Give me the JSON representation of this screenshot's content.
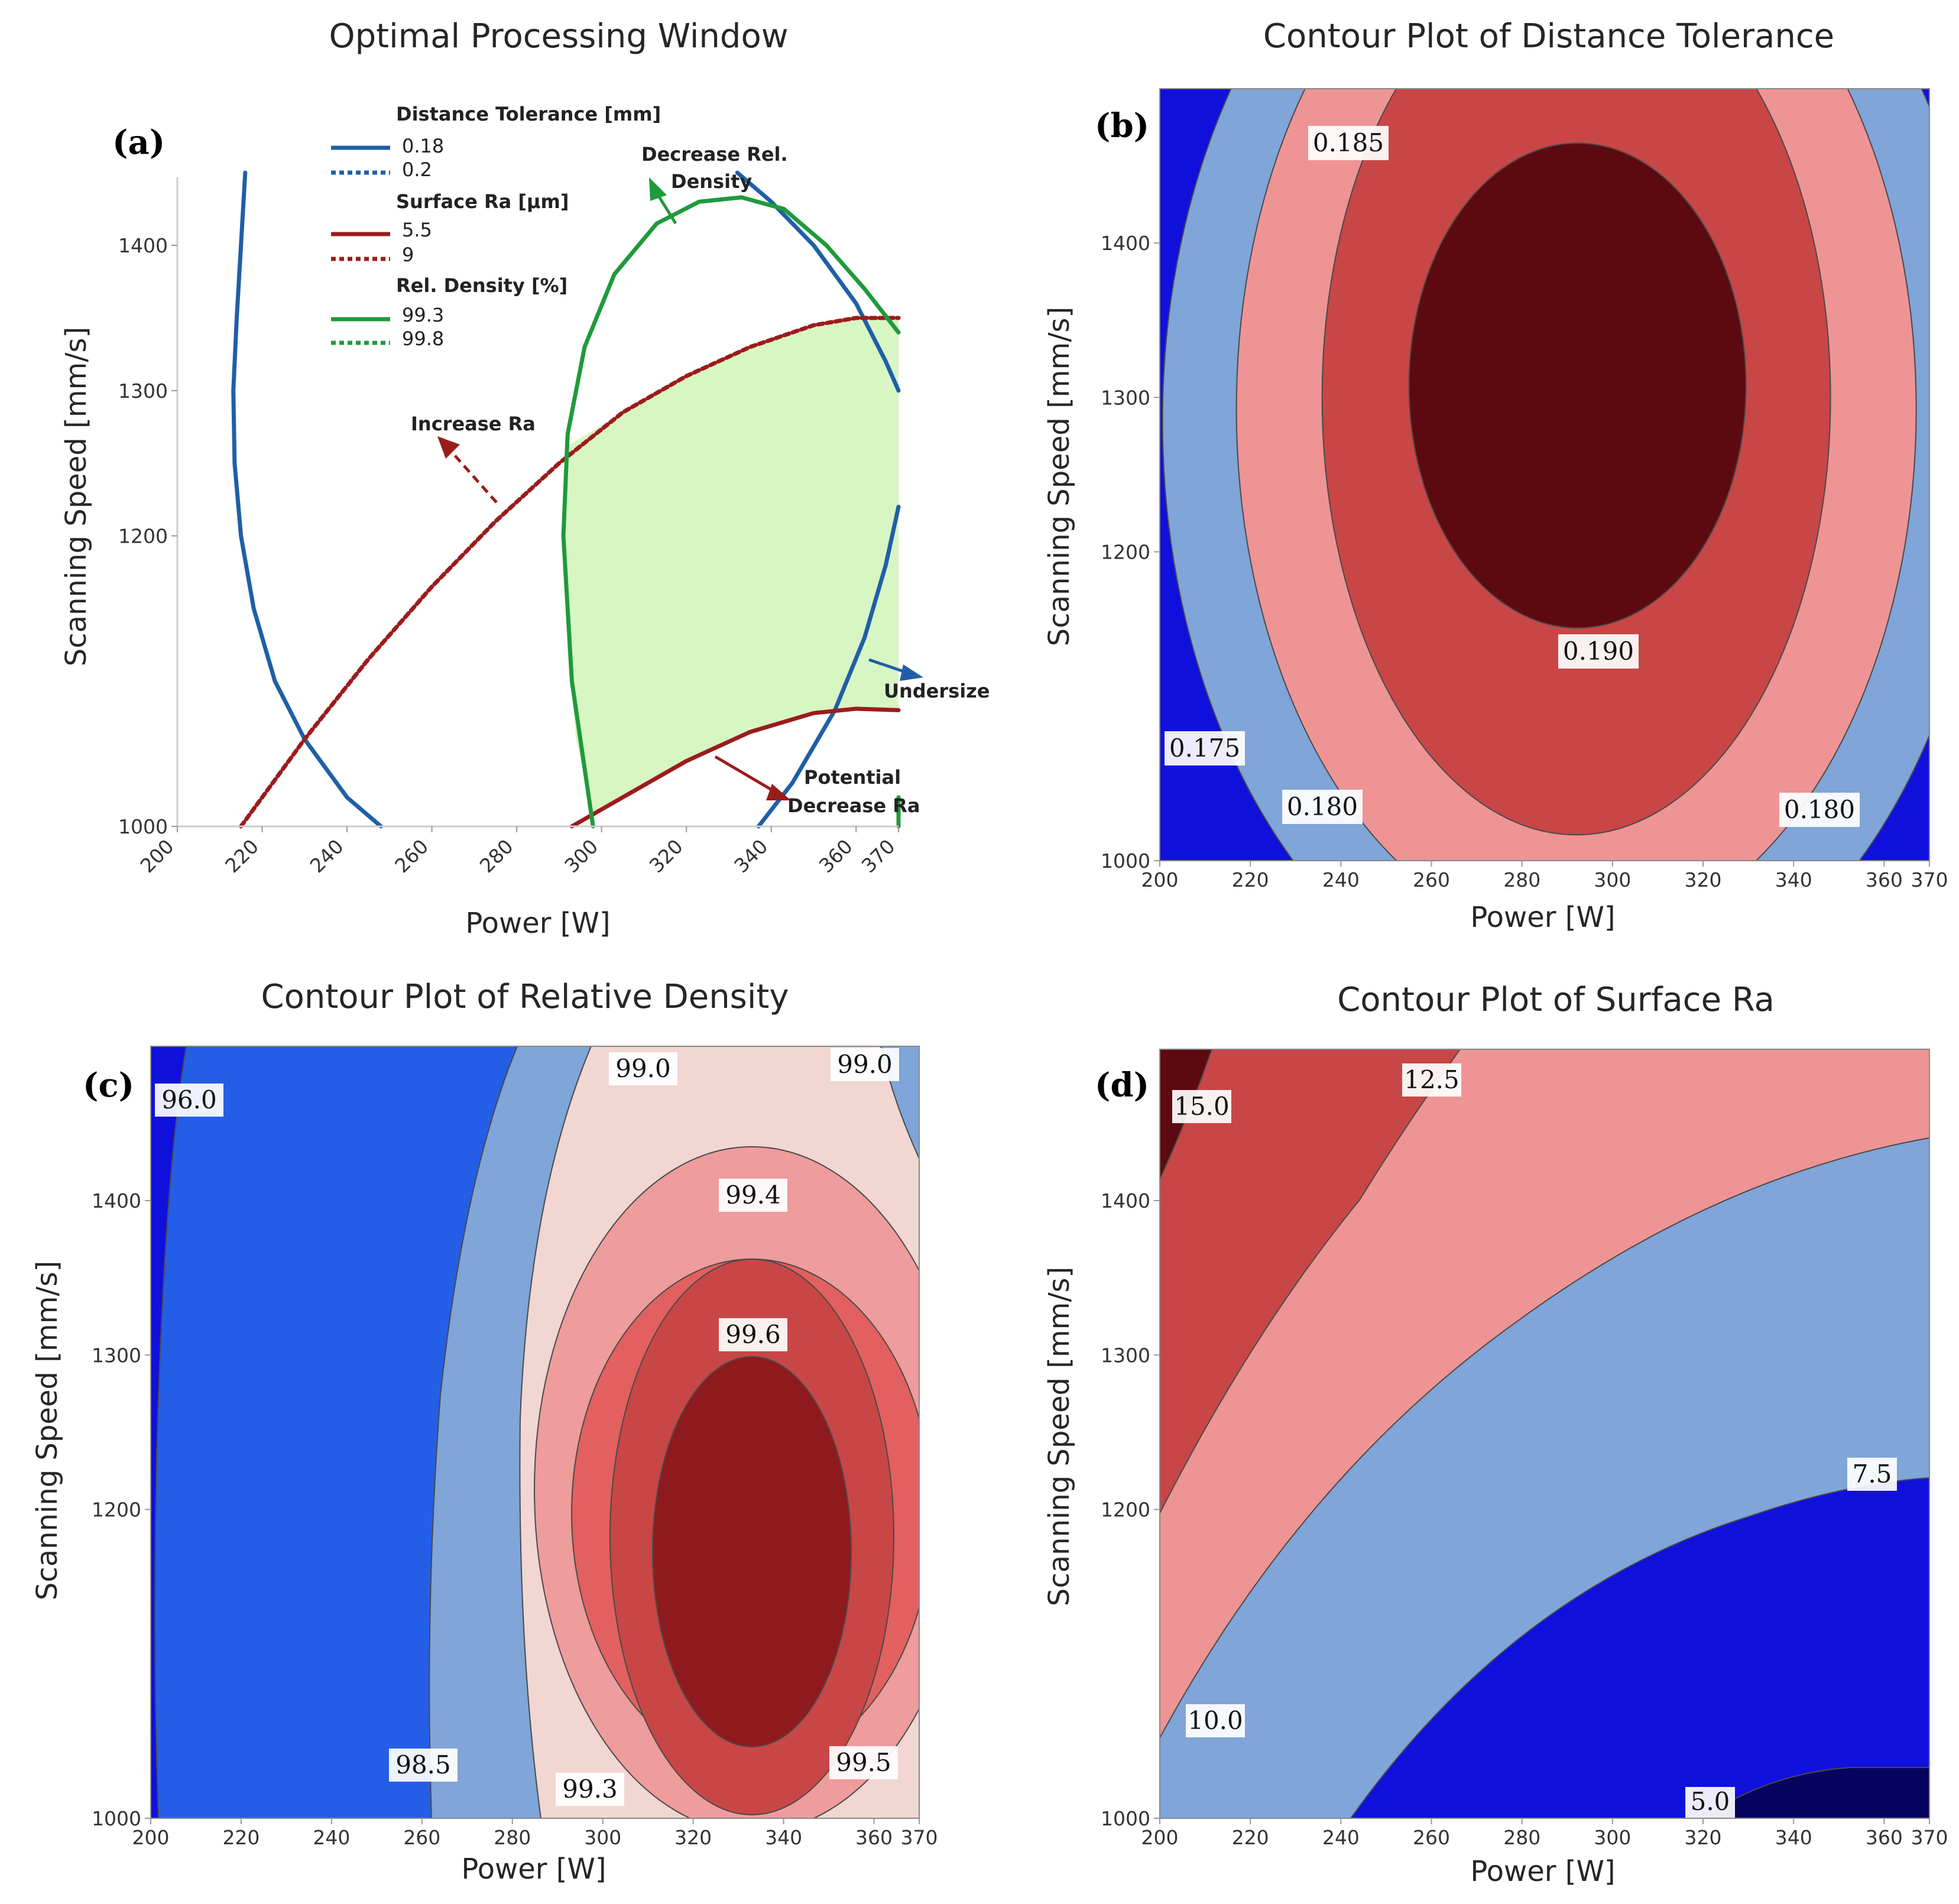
{
  "chart_data": [
    {
      "id": "a",
      "type": "line",
      "panel_label": "(a)",
      "title": "Optimal Processing Window",
      "xlabel": "Power [W]",
      "ylabel": "Scanning Speed [mm/s]",
      "xlim": [
        200,
        370
      ],
      "ylim": [
        1000,
        1450
      ],
      "xticks": [
        "200",
        "220",
        "240",
        "260",
        "280",
        "300",
        "320",
        "340",
        "360",
        "370"
      ],
      "yticks": [
        "1000",
        "1200",
        "1300",
        "1400"
      ],
      "legend": {
        "groups": [
          {
            "header": "Distance Tolerance [mm]",
            "entries": [
              {
                "label": "0.18",
                "color": "#1f5fa8",
                "dashed": false
              },
              {
                "label": "0.2",
                "color": "#1f5fa8",
                "dashed": true
              }
            ]
          },
          {
            "header": "Surface Ra [μm]",
            "entries": [
              {
                "label": "5.5",
                "color": "#9b1c1c",
                "dashed": false
              },
              {
                "label": "9",
                "color": "#9b1c1c",
                "dashed": true
              }
            ]
          },
          {
            "header": "Rel. Density [%]",
            "entries": [
              {
                "label": "99.3",
                "color": "#1f9a3a",
                "dashed": false
              },
              {
                "label": "99.8",
                "color": "#1f9a3a",
                "dashed": true
              }
            ]
          }
        ]
      },
      "series": [
        {
          "name": "Distance Tolerance 0.18 (left)",
          "color": "#1f5fa8",
          "x": [
            216,
            215,
            214,
            213.2,
            213.5,
            215,
            218,
            223,
            230,
            240,
            248
          ],
          "y": [
            1450,
            1400,
            1350,
            1300,
            1250,
            1200,
            1150,
            1100,
            1060,
            1020,
            1000
          ]
        },
        {
          "name": "Distance Tolerance 0.18 (right)",
          "color": "#1f5fa8",
          "x": [
            332,
            340,
            350,
            360,
            367,
            370
          ],
          "y": [
            1450,
            1430,
            1400,
            1360,
            1320,
            1300
          ]
        },
        {
          "name": "Distance Tolerance 0.18 (lower right)",
          "color": "#1f5fa8",
          "x": [
            337,
            345,
            355,
            362,
            367,
            370
          ],
          "y": [
            1000,
            1030,
            1080,
            1130,
            1180,
            1220
          ]
        },
        {
          "name": "Surface Ra 9",
          "color": "#9b1c1c",
          "dashed": true,
          "x": [
            215,
            230,
            245,
            260,
            275,
            290,
            305,
            320,
            335,
            350,
            360,
            370
          ],
          "y": [
            1000,
            1060,
            1115,
            1165,
            1210,
            1250,
            1285,
            1310,
            1330,
            1345,
            1350,
            1350
          ]
        },
        {
          "name": "Surface Ra 5.5",
          "color": "#9b1c1c",
          "x": [
            293,
            305,
            320,
            335,
            350,
            360,
            370
          ],
          "y": [
            1000,
            1020,
            1045,
            1065,
            1078,
            1081,
            1080
          ]
        },
        {
          "name": "Rel. Density 99.3",
          "color": "#1f9a3a",
          "x": [
            298,
            293,
            291,
            292,
            296,
            303,
            313,
            323,
            333,
            343,
            353,
            362,
            370
          ],
          "y": [
            1000,
            1100,
            1200,
            1270,
            1330,
            1380,
            1415,
            1430,
            1433,
            1425,
            1400,
            1370,
            1340
          ]
        },
        {
          "name": "Rel. Density 99.3 (right edge)",
          "color": "#1f9a3a",
          "x": [
            370,
            370
          ],
          "y": [
            1000,
            1020
          ]
        }
      ],
      "window_region": {
        "color": "#d8f5c4"
      },
      "annotations": [
        "Increase Ra",
        "Decrease Rel.",
        "Density",
        "Undersize",
        "Potential",
        "Decrease Ra"
      ]
    },
    {
      "id": "b",
      "type": "heatmap",
      "panel_label": "(b)",
      "title": "Contour Plot of Distance Tolerance",
      "xlabel": "Power [W]",
      "ylabel": "Scanning Speed [mm/s]",
      "xlim": [
        200,
        370
      ],
      "ylim": [
        1000,
        1500
      ],
      "xticks": [
        "200",
        "220",
        "240",
        "260",
        "280",
        "300",
        "320",
        "340",
        "360",
        "370"
      ],
      "yticks": [
        "1000",
        "1200",
        "1300",
        "1400"
      ],
      "center": {
        "power": 292,
        "speed": 1300
      },
      "levels": [
        {
          "label": "0.175",
          "color": "#1010dd"
        },
        {
          "label": "0.180",
          "color": "#7fa5d9"
        },
        {
          "label": "0.185",
          "color": "#ee9494"
        },
        {
          "label": "0.190",
          "color": "#c84646"
        },
        {
          "label": "",
          "color": "#5c0a10"
        }
      ],
      "contour_labels": [
        "0.185",
        "0.190",
        "0.175",
        "0.180",
        "0.180"
      ]
    },
    {
      "id": "c",
      "type": "heatmap",
      "panel_label": "(c)",
      "title": "Contour Plot of Relative Density",
      "xlabel": "Power [W]",
      "ylabel": "Scanning Speed [mm/s]",
      "xlim": [
        200,
        370
      ],
      "ylim": [
        1000,
        1500
      ],
      "xticks": [
        "200",
        "220",
        "240",
        "260",
        "280",
        "300",
        "320",
        "340",
        "360",
        "370"
      ],
      "yticks": [
        "1000",
        "1200",
        "1300",
        "1400"
      ],
      "levels": [
        {
          "label": "96.0",
          "color": "#1010dd"
        },
        {
          "label": "98.5",
          "color": "#245ee6"
        },
        {
          "label": "99.0",
          "color": "#7fa5d9"
        },
        {
          "label": "99.3",
          "color": "#f1d6d1"
        },
        {
          "label": "99.4",
          "color": "#ee9c9c"
        },
        {
          "label": "99.5",
          "color": "#e26060"
        },
        {
          "label": "99.6",
          "color": "#c84646"
        },
        {
          "label": "",
          "color": "#8f1a1e"
        }
      ],
      "contour_labels": [
        "96.0",
        "99.0",
        "99.0",
        "99.4",
        "99.6",
        "98.5",
        "99.3",
        "99.5"
      ]
    },
    {
      "id": "d",
      "type": "heatmap",
      "panel_label": "(d)",
      "title": "Contour Plot of Surface Ra",
      "xlabel": "Power [W]",
      "ylabel": "Scanning Speed [mm/s]",
      "xlim": [
        200,
        370
      ],
      "ylim": [
        1000,
        1500
      ],
      "xticks": [
        "200",
        "220",
        "240",
        "260",
        "280",
        "300",
        "320",
        "340",
        "360",
        "370"
      ],
      "yticks": [
        "1000",
        "1200",
        "1300",
        "1400"
      ],
      "levels": [
        {
          "label": "15.0",
          "color": "#5c0a10"
        },
        {
          "label": "12.5",
          "color": "#c84646"
        },
        {
          "label": "10.0",
          "color": "#ee9494"
        },
        {
          "label": "7.5",
          "color": "#7fa5d9"
        },
        {
          "label": "5.0",
          "color": "#1010dd"
        },
        {
          "label": "",
          "color": "#050560"
        }
      ],
      "contour_labels": [
        "15.0",
        "12.5",
        "10.0",
        "7.5",
        "5.0"
      ]
    }
  ]
}
